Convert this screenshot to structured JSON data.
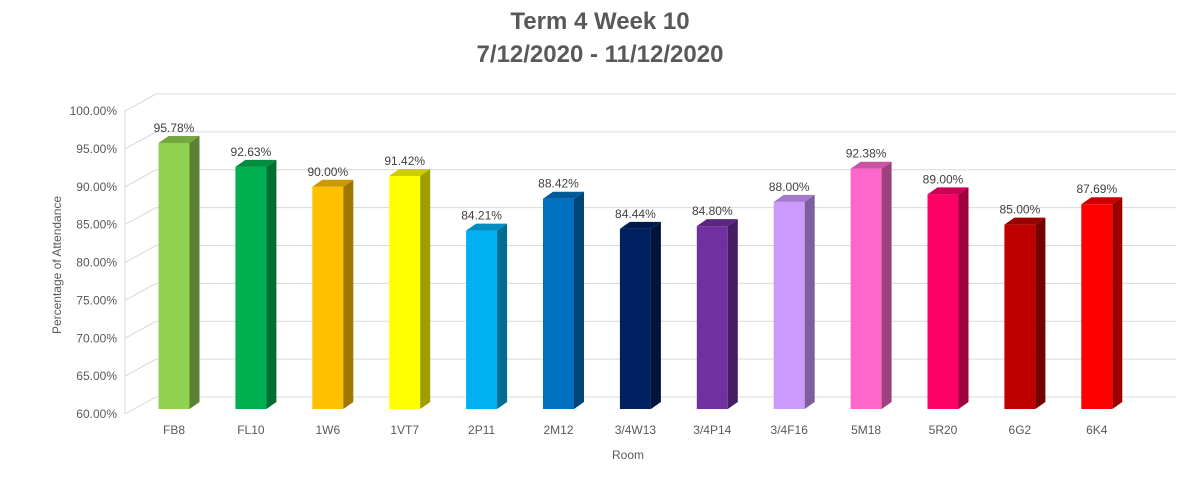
{
  "chart_data": {
    "type": "bar",
    "title_line1": "Term 4 Week 10",
    "title_line2": "7/12/2020 - 11/12/2020",
    "xlabel": "Room",
    "ylabel": "Percentage of Attendance",
    "ylim": [
      60,
      100
    ],
    "yticks": [
      "60.00%",
      "65.00%",
      "70.00%",
      "75.00%",
      "80.00%",
      "85.00%",
      "90.00%",
      "95.00%",
      "100.00%"
    ],
    "grid": true,
    "style": "3d-column",
    "categories": [
      "FB8",
      "FL10",
      "1W6",
      "1VT7",
      "2P11",
      "2M12",
      "3/4W13",
      "3/4P14",
      "3/4F16",
      "5M18",
      "5R20",
      "6G2",
      "6K4"
    ],
    "values": [
      95.78,
      92.63,
      90.0,
      91.42,
      84.21,
      88.42,
      84.44,
      84.8,
      88.0,
      92.38,
      89.0,
      85.0,
      87.69
    ],
    "value_labels": [
      "95.78%",
      "92.63%",
      "90.00%",
      "91.42%",
      "84.21%",
      "88.42%",
      "84.44%",
      "84.80%",
      "88.00%",
      "92.38%",
      "89.00%",
      "85.00%",
      "87.69%"
    ],
    "colors": [
      "#92D050",
      "#00B050",
      "#FFC000",
      "#FFFF00",
      "#00B0F0",
      "#0070C0",
      "#002060",
      "#7030A0",
      "#CC99FF",
      "#FF66CC",
      "#FF0066",
      "#C00000",
      "#FF0000"
    ]
  }
}
